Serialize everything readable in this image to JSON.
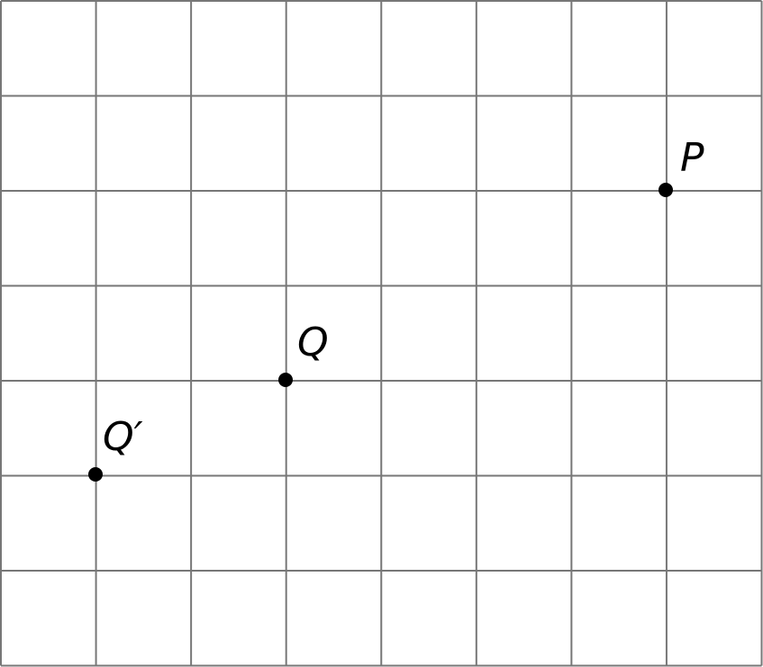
{
  "diagram": {
    "grid": {
      "columns": 8,
      "rows": 7,
      "line_color": "#777777"
    },
    "point_color": "#000000",
    "points": [
      {
        "id": "P",
        "label": "P"
      },
      {
        "id": "Q",
        "label": "Q"
      },
      {
        "id": "Q-prime",
        "label": "Q′"
      }
    ]
  }
}
